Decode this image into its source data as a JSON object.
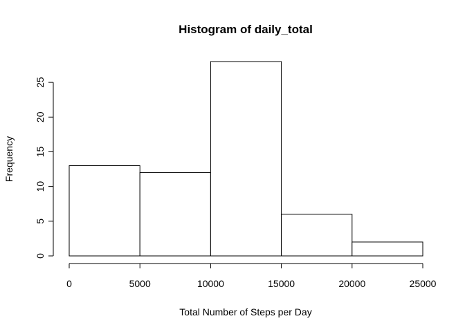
{
  "chart_data": {
    "type": "bar",
    "title": "Histogram of daily_total",
    "xlabel": "Total Number of Steps per Day",
    "ylabel": "Frequency",
    "bins": [
      {
        "start": 0,
        "end": 5000,
        "count": 13
      },
      {
        "start": 5000,
        "end": 10000,
        "count": 12
      },
      {
        "start": 10000,
        "end": 15000,
        "count": 28
      },
      {
        "start": 15000,
        "end": 20000,
        "count": 6
      },
      {
        "start": 20000,
        "end": 25000,
        "count": 2
      }
    ],
    "xlim": [
      0,
      25000
    ],
    "ylim": [
      0,
      28
    ],
    "x_ticks": [
      "0",
      "5000",
      "10000",
      "15000",
      "20000",
      "25000"
    ],
    "y_ticks": [
      "0",
      "5",
      "10",
      "15",
      "20",
      "25"
    ],
    "grid": false,
    "bar_fill": "#ffffff",
    "bar_stroke": "#000000"
  }
}
